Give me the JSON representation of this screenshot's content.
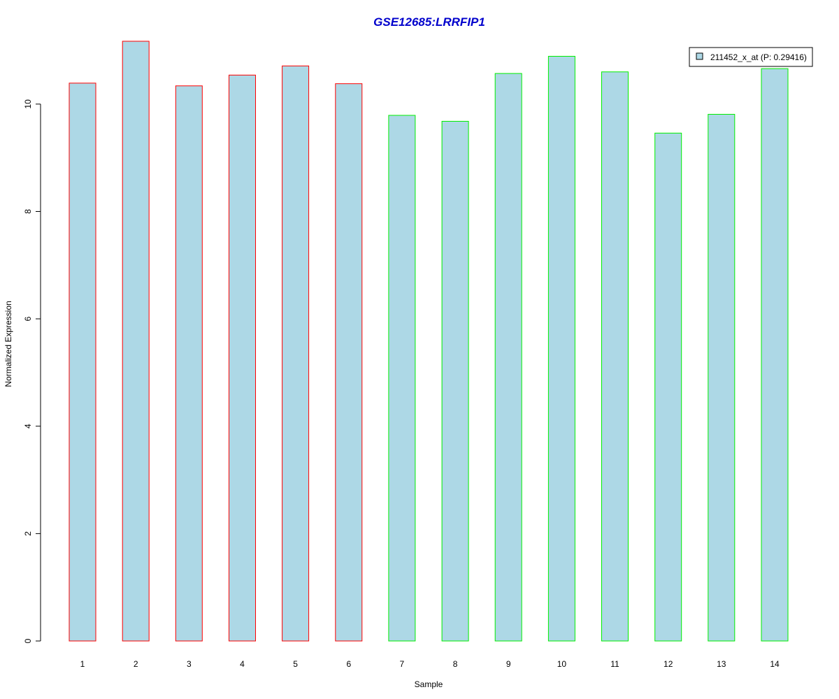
{
  "chart_data": {
    "type": "bar",
    "title": "GSE12685:LRRFIP1",
    "xlabel": "Sample",
    "ylabel": "Normalized Expression",
    "categories": [
      "1",
      "2",
      "3",
      "4",
      "5",
      "6",
      "7",
      "8",
      "9",
      "10",
      "11",
      "12",
      "13",
      "14"
    ],
    "values": [
      10.39,
      11.17,
      10.34,
      10.54,
      10.71,
      10.38,
      9.79,
      9.68,
      10.57,
      10.89,
      10.6,
      9.46,
      9.81,
      10.66
    ],
    "border_colors": [
      "#ff0000",
      "#ff0000",
      "#ff0000",
      "#ff0000",
      "#ff0000",
      "#ff0000",
      "#00ee00",
      "#00ee00",
      "#00ee00",
      "#00ee00",
      "#00ee00",
      "#00ee00",
      "#00ee00",
      "#00ee00"
    ],
    "fill_color": "#add8e6",
    "title_color": "#0000cc",
    "ylim": [
      0,
      11.17
    ],
    "yticks": [
      0,
      2,
      4,
      6,
      8,
      10
    ],
    "grid": false,
    "legend": {
      "placement": "top-right",
      "entries": [
        {
          "label": "211452_x_at (P: 0.29416)",
          "color": "#add8e6"
        }
      ]
    }
  }
}
